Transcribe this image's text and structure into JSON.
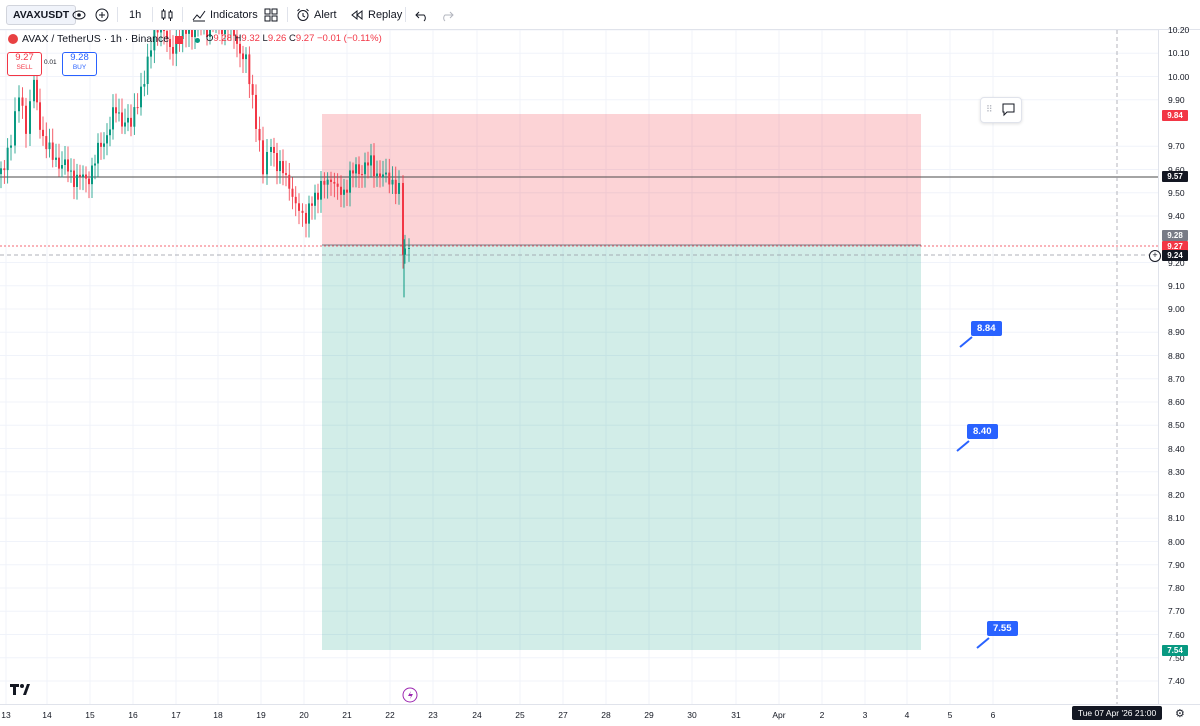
{
  "toolbar": {
    "symbol": "AVAXUSDT",
    "interval": "1h",
    "indicators_label": "Indicators",
    "alert_label": "Alert",
    "replay_label": "Replay"
  },
  "legend": {
    "title": "AVAX / TetherUS · 1h · Binance",
    "ohlc": {
      "o_label": "O",
      "o": "9.28",
      "h_label": "H",
      "h": "9.32",
      "l_label": "L",
      "l": "9.26",
      "c_label": "C",
      "c": "9.27",
      "change": "−0.01 (−0.11%)"
    }
  },
  "trade": {
    "sell_price": "9.27",
    "sell_label": "SELL",
    "spread": "0.01",
    "buy_price": "9.28",
    "buy_label": "BUY"
  },
  "price_axis": {
    "labels": [
      "10.20",
      "10.10",
      "10.00",
      "9.90",
      "9.70",
      "9.60",
      "9.50",
      "9.40",
      "9.20",
      "9.10",
      "9.00",
      "8.90",
      "8.80",
      "8.70",
      "8.60",
      "8.50",
      "8.40",
      "8.30",
      "8.20",
      "8.10",
      "8.00",
      "7.90",
      "7.80",
      "7.70",
      "7.60",
      "7.50",
      "7.40"
    ],
    "tag_target": "9.84",
    "tag_hline": "9.57",
    "tag_close": "9.28",
    "tag_close_hidden": "9.27",
    "tag_cursor": "9.24",
    "tag_stop": "7.54"
  },
  "time_axis": {
    "labels": [
      "13",
      "14",
      "15",
      "16",
      "17",
      "18",
      "19",
      "20",
      "21",
      "22",
      "23",
      "24",
      "25",
      "27",
      "28",
      "29",
      "30",
      "31",
      "Apr",
      "2",
      "3",
      "4",
      "5",
      "6"
    ],
    "cursor_date": "Tue 07 Apr '26  21:00"
  },
  "callouts": [
    "8.84",
    "8.40",
    "7.55"
  ],
  "colors": {
    "up": "#089981",
    "down": "#f23645",
    "profit": "rgba(8,153,129,0.18)",
    "loss": "rgba(242,54,69,0.22)",
    "accent": "#2962ff"
  },
  "chart_data": {
    "type": "candlestick",
    "symbol": "AVAXUSDT",
    "x_axis_range": [
      "13 Mar",
      "6 Apr"
    ],
    "ylim": [
      7.4,
      10.2
    ],
    "last_close": 9.27,
    "horizontal_line": 9.57,
    "position": {
      "entry": 9.28,
      "target_zone_top": 9.84,
      "bottom": 7.54
    },
    "candles_approx": [
      {
        "day": "13",
        "close": 9.58
      },
      {
        "day": "14",
        "close": 9.8
      },
      {
        "day": "15",
        "close": 9.56
      },
      {
        "day": "16",
        "close": 9.92
      },
      {
        "day": "17",
        "close": 10.15
      },
      {
        "day": "18",
        "close": 10.1
      },
      {
        "day": "19",
        "close": 9.65
      },
      {
        "day": "20",
        "close": 9.45
      },
      {
        "day": "21",
        "close": 9.55
      },
      {
        "day": "22",
        "close": 9.27
      }
    ]
  }
}
